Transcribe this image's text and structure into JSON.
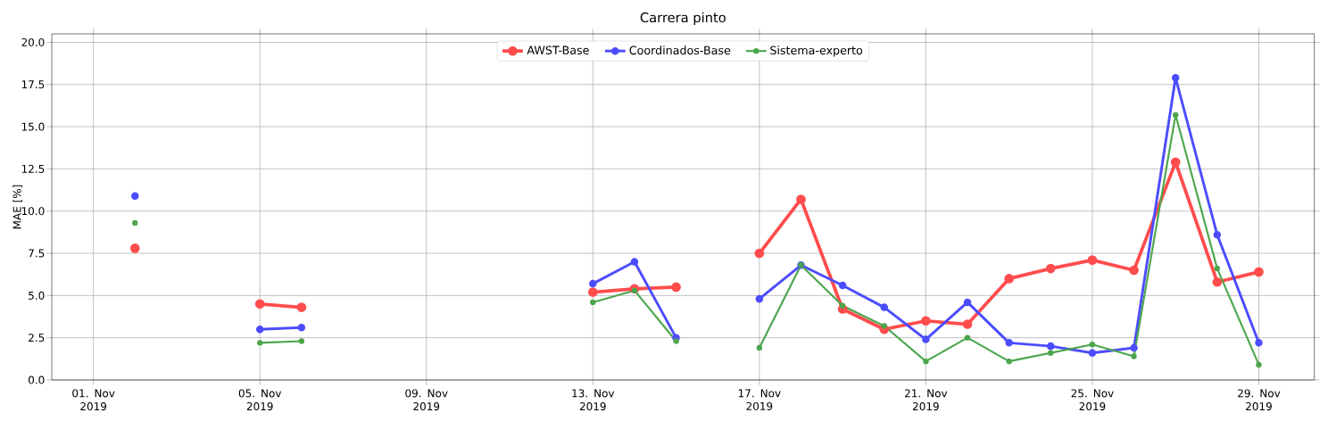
{
  "chart_data": {
    "type": "line",
    "title": "Carrera pinto",
    "ylabel": "MAE [%]",
    "x": [
      "2019-11-02",
      "2019-11-03",
      "2019-11-04",
      "2019-11-05",
      "2019-11-06",
      "2019-11-07",
      "2019-11-08",
      "2019-11-09",
      "2019-11-10",
      "2019-11-11",
      "2019-11-12",
      "2019-11-13",
      "2019-11-14",
      "2019-11-15",
      "2019-11-16",
      "2019-11-17",
      "2019-11-18",
      "2019-11-19",
      "2019-11-20",
      "2019-11-21",
      "2019-11-22",
      "2019-11-23",
      "2019-11-24",
      "2019-11-25",
      "2019-11-26",
      "2019-11-27",
      "2019-11-28",
      "2019-11-29"
    ],
    "series": [
      {
        "name": "AWST-Base",
        "color": "#ff4c4c",
        "values": [
          7.8,
          null,
          null,
          4.5,
          4.3,
          null,
          null,
          null,
          null,
          null,
          null,
          5.2,
          5.4,
          5.5,
          null,
          7.5,
          10.7,
          4.2,
          3.0,
          3.5,
          3.3,
          6.0,
          6.6,
          7.1,
          6.5,
          12.9,
          5.8,
          6.4
        ]
      },
      {
        "name": "Coordinados-Base",
        "color": "#4c4cff",
        "values": [
          10.9,
          null,
          null,
          3.0,
          3.1,
          null,
          null,
          null,
          null,
          null,
          null,
          5.7,
          7.0,
          2.5,
          null,
          4.8,
          6.8,
          5.6,
          4.3,
          2.4,
          4.6,
          2.2,
          2.0,
          1.6,
          1.9,
          17.9,
          8.6,
          2.2
        ]
      },
      {
        "name": "Sistema-experto",
        "color": "#4ca64c",
        "values": [
          9.3,
          null,
          null,
          2.2,
          2.3,
          null,
          null,
          null,
          null,
          null,
          null,
          4.6,
          5.3,
          2.3,
          null,
          1.9,
          6.8,
          4.4,
          3.2,
          1.1,
          2.5,
          1.1,
          1.6,
          2.1,
          1.4,
          15.7,
          6.6,
          0.9
        ]
      }
    ],
    "xlim": [
      "2019-10-31",
      "2019-11-30T08:00"
    ],
    "xticks": [
      {
        "value": "2019-11-01",
        "label": "01. Nov 2019"
      },
      {
        "value": "2019-11-05",
        "label": "05. Nov 2019"
      },
      {
        "value": "2019-11-09",
        "label": "09. Nov 2019"
      },
      {
        "value": "2019-11-13",
        "label": "13. Nov 2019"
      },
      {
        "value": "2019-11-17",
        "label": "17. Nov 2019"
      },
      {
        "value": "2019-11-21",
        "label": "21. Nov 2019"
      },
      {
        "value": "2019-11-25",
        "label": "25. Nov 2019"
      },
      {
        "value": "2019-11-29",
        "label": "29. Nov 2019"
      }
    ],
    "ylim": [
      0,
      20.5
    ],
    "yticks": [
      {
        "value": 0,
        "label": "0.0"
      },
      {
        "value": 2.5,
        "label": "2.5"
      },
      {
        "value": 5,
        "label": "5.0"
      },
      {
        "value": 7.5,
        "label": "7.5"
      },
      {
        "value": 10,
        "label": "10.0"
      },
      {
        "value": 12.5,
        "label": "12.5"
      },
      {
        "value": 15,
        "label": "15.0"
      },
      {
        "value": 17.5,
        "label": "17.5"
      },
      {
        "value": 20,
        "label": "20.0"
      }
    ],
    "grid": true,
    "legend": "top",
    "marker": "circle",
    "line_style": "solid"
  }
}
